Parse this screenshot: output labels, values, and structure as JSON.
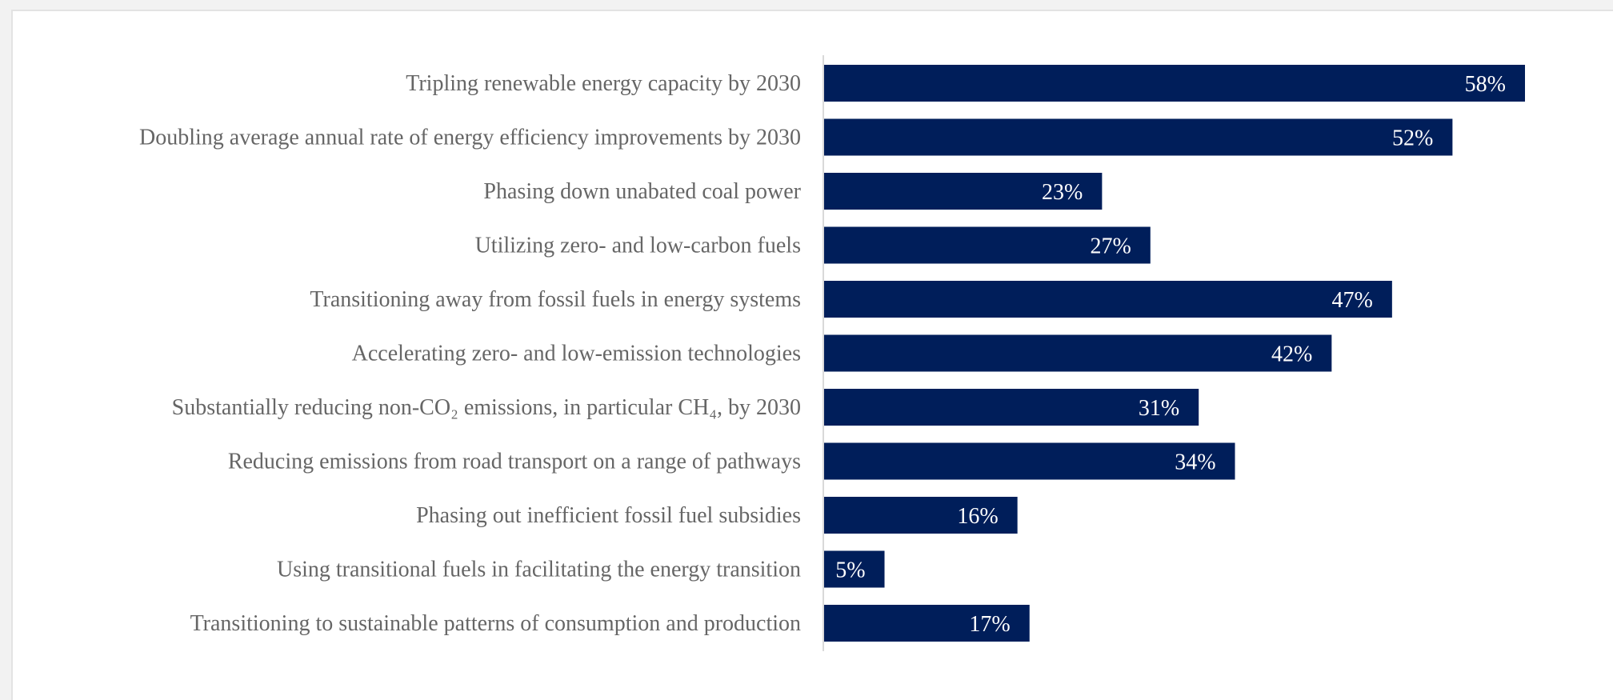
{
  "chart_data": {
    "type": "bar",
    "orientation": "horizontal",
    "title": "",
    "xlabel": "",
    "ylabel": "",
    "xlim": [
      0,
      58
    ],
    "grid": false,
    "legend": "none",
    "bar_color": "#001e5a",
    "label_color": "#666666",
    "value_format": "percent",
    "categories": [
      "Tripling renewable energy capacity by 2030",
      "Doubling average annual rate of energy efficiency improvements by 2030",
      "Phasing down unabated coal power",
      "Utilizing zero- and low-carbon fuels",
      "Transitioning away from fossil fuels in energy systems",
      "Accelerating zero- and low-emission technologies",
      "Substantially reducing non-CO₂ emissions, in particular CH₄, by 2030",
      "Reducing emissions from road transport on a range of pathways",
      "Phasing out inefficient fossil fuel subsidies",
      "Using transitional fuels in facilitating the energy transition",
      "Transitioning to sustainable patterns of consumption and production"
    ],
    "values": [
      58,
      52,
      23,
      27,
      47,
      42,
      31,
      34,
      16,
      5,
      17
    ],
    "data_labels": [
      "58%",
      "52%",
      "23%",
      "27%",
      "47%",
      "42%",
      "31%",
      "34%",
      "16%",
      "5%",
      "17%"
    ]
  }
}
